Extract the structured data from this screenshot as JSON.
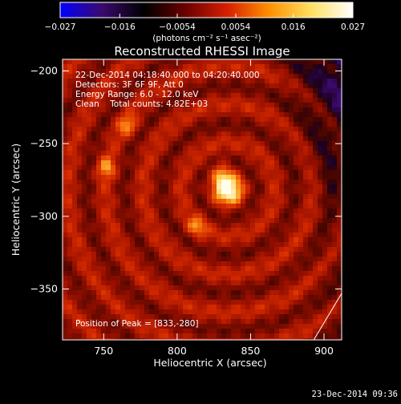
{
  "chart_data": {
    "type": "heatmap",
    "title": "Reconstructed RHESSI Image",
    "xlabel": "Heliocentric X (arcsec)",
    "ylabel": "Heliocentric Y (arcsec)",
    "xlim": [
      722,
      912
    ],
    "ylim": [
      -385,
      -192
    ],
    "xticks": [
      750,
      800,
      850,
      900
    ],
    "yticks": [
      -200,
      -250,
      -300,
      -350
    ],
    "colorbar": {
      "min": -0.027,
      "max": 0.027,
      "ticks": [
        "−0.027",
        "−0.016",
        "−0.0054",
        "0.0054",
        "0.016",
        "0.027"
      ],
      "unit_label": "(photons cm⁻² s⁻¹ asec⁻²)",
      "colormap": [
        "#0000ff",
        "#3b0a6e",
        "#000000",
        "#6a0000",
        "#d62000",
        "#ff9000",
        "#ffe060",
        "#ffffff"
      ]
    },
    "annotations": {
      "time_range": "22-Dec-2014 04:18:40.000 to 04:20:40.000",
      "detectors": "Detectors: 3F 6F 9F, Att 0",
      "energy": "Energy Range: 6.0 - 12.0 keV",
      "clean": "Clean    Total counts: 4.82E+03",
      "peak": "Position of Peak = [833,-280]"
    },
    "peak": {
      "x": 833,
      "y": -280
    },
    "secondary_sources": [
      {
        "x": 765,
        "y": -236
      },
      {
        "x": 828,
        "y": -268
      },
      {
        "x": 750,
        "y": -265
      },
      {
        "x": 812,
        "y": -305
      }
    ],
    "limb_line": [
      [
        893,
        -385
      ],
      [
        912,
        -353
      ]
    ]
  },
  "footer": {
    "timestamp": "23-Dec-2014 09:36"
  }
}
